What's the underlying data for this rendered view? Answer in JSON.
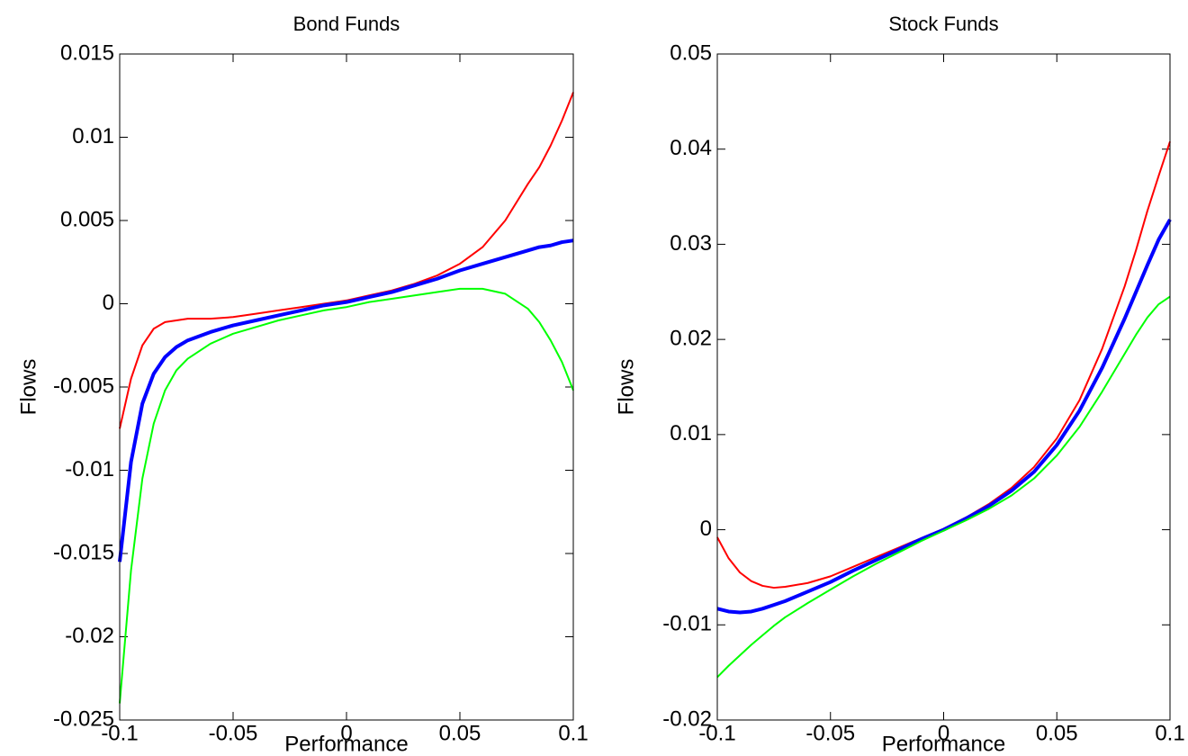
{
  "chart_data": [
    {
      "type": "line",
      "title": "Bond Funds",
      "x_label": "Performance",
      "y_label": "Flows",
      "x": [
        -0.1,
        -0.095,
        -0.09,
        -0.085,
        -0.08,
        -0.075,
        -0.07,
        -0.06,
        -0.05,
        -0.04,
        -0.03,
        -0.02,
        -0.01,
        0,
        0.01,
        0.02,
        0.03,
        0.04,
        0.05,
        0.06,
        0.07,
        0.08,
        0.085,
        0.09,
        0.095,
        0.1
      ],
      "xlim": [
        -0.1,
        0.1
      ],
      "xticks": [
        -0.1,
        -0.05,
        0,
        0.05,
        0.1
      ],
      "ylim": [
        -0.025,
        0.015
      ],
      "yticks": [
        -0.025,
        -0.02,
        -0.015,
        -0.01,
        -0.005,
        0,
        0.005,
        0.01,
        0.015
      ],
      "series": [
        {
          "color": "#ff0000",
          "width": 2,
          "values": [
            -0.0075,
            -0.0045,
            -0.0025,
            -0.0015,
            -0.0011,
            -0.001,
            -0.0009,
            -0.0009,
            -0.0008,
            -0.0006,
            -0.0004,
            -0.0002,
            0,
            0.0002,
            0.0005,
            0.0008,
            0.0012,
            0.0017,
            0.0024,
            0.0034,
            0.005,
            0.0072,
            0.0082,
            0.0095,
            0.011,
            0.0127
          ]
        },
        {
          "color": "#0000ff",
          "width": 4,
          "values": [
            -0.0155,
            -0.0095,
            -0.006,
            -0.0042,
            -0.0032,
            -0.0026,
            -0.0022,
            -0.0017,
            -0.0013,
            -0.001,
            -0.0007,
            -0.0004,
            -0.0001,
            0.0001,
            0.0004,
            0.0007,
            0.0011,
            0.0015,
            0.002,
            0.0024,
            0.0028,
            0.0032,
            0.0034,
            0.0035,
            0.0037,
            0.0038
          ]
        },
        {
          "color": "#00ff00",
          "width": 2,
          "values": [
            -0.024,
            -0.016,
            -0.0105,
            -0.0072,
            -0.0052,
            -0.004,
            -0.0033,
            -0.0024,
            -0.0018,
            -0.0014,
            -0.001,
            -0.0007,
            -0.0004,
            -0.0002,
            0.0001,
            0.0003,
            0.0005,
            0.0007,
            0.0009,
            0.0009,
            0.0006,
            -0.0003,
            -0.0011,
            -0.0022,
            -0.0035,
            -0.0052
          ]
        }
      ]
    },
    {
      "type": "line",
      "title": "Stock Funds",
      "x_label": "Performance",
      "y_label": "Flows",
      "x": [
        -0.1,
        -0.095,
        -0.09,
        -0.085,
        -0.08,
        -0.075,
        -0.07,
        -0.06,
        -0.05,
        -0.04,
        -0.03,
        -0.02,
        -0.01,
        0,
        0.01,
        0.02,
        0.03,
        0.04,
        0.05,
        0.06,
        0.07,
        0.08,
        0.085,
        0.09,
        0.095,
        0.1
      ],
      "xlim": [
        -0.1,
        0.1
      ],
      "xticks": [
        -0.1,
        -0.05,
        0,
        0.05,
        0.1
      ],
      "ylim": [
        -0.02,
        0.05
      ],
      "yticks": [
        -0.02,
        -0.01,
        0,
        0.01,
        0.02,
        0.03,
        0.04,
        0.05
      ],
      "series": [
        {
          "color": "#ff0000",
          "width": 2,
          "values": [
            -0.0008,
            -0.003,
            -0.0045,
            -0.0054,
            -0.0059,
            -0.0061,
            -0.006,
            -0.0056,
            -0.0049,
            -0.0039,
            -0.0029,
            -0.0019,
            -0.0009,
            0.0001,
            0.0013,
            0.0027,
            0.0044,
            0.0066,
            0.0096,
            0.0136,
            0.019,
            0.0256,
            0.0294,
            0.0335,
            0.0372,
            0.0408
          ]
        },
        {
          "color": "#0000ff",
          "width": 4,
          "values": [
            -0.0083,
            -0.0086,
            -0.0087,
            -0.0086,
            -0.0083,
            -0.0079,
            -0.0075,
            -0.0065,
            -0.0055,
            -0.0043,
            -0.0032,
            -0.0021,
            -0.001,
            0,
            0.0012,
            0.0025,
            0.0041,
            0.0061,
            0.0089,
            0.0125,
            0.017,
            0.0222,
            0.025,
            0.0278,
            0.0305,
            0.0326
          ]
        },
        {
          "color": "#00ff00",
          "width": 2,
          "values": [
            -0.0155,
            -0.0143,
            -0.0132,
            -0.0121,
            -0.0111,
            -0.0101,
            -0.0092,
            -0.0077,
            -0.0063,
            -0.0049,
            -0.0036,
            -0.0024,
            -0.0012,
            -0.0001,
            0.001,
            0.0022,
            0.0036,
            0.0054,
            0.0078,
            0.0108,
            0.0145,
            0.0185,
            0.0205,
            0.0223,
            0.0237,
            0.0245
          ]
        }
      ]
    }
  ]
}
